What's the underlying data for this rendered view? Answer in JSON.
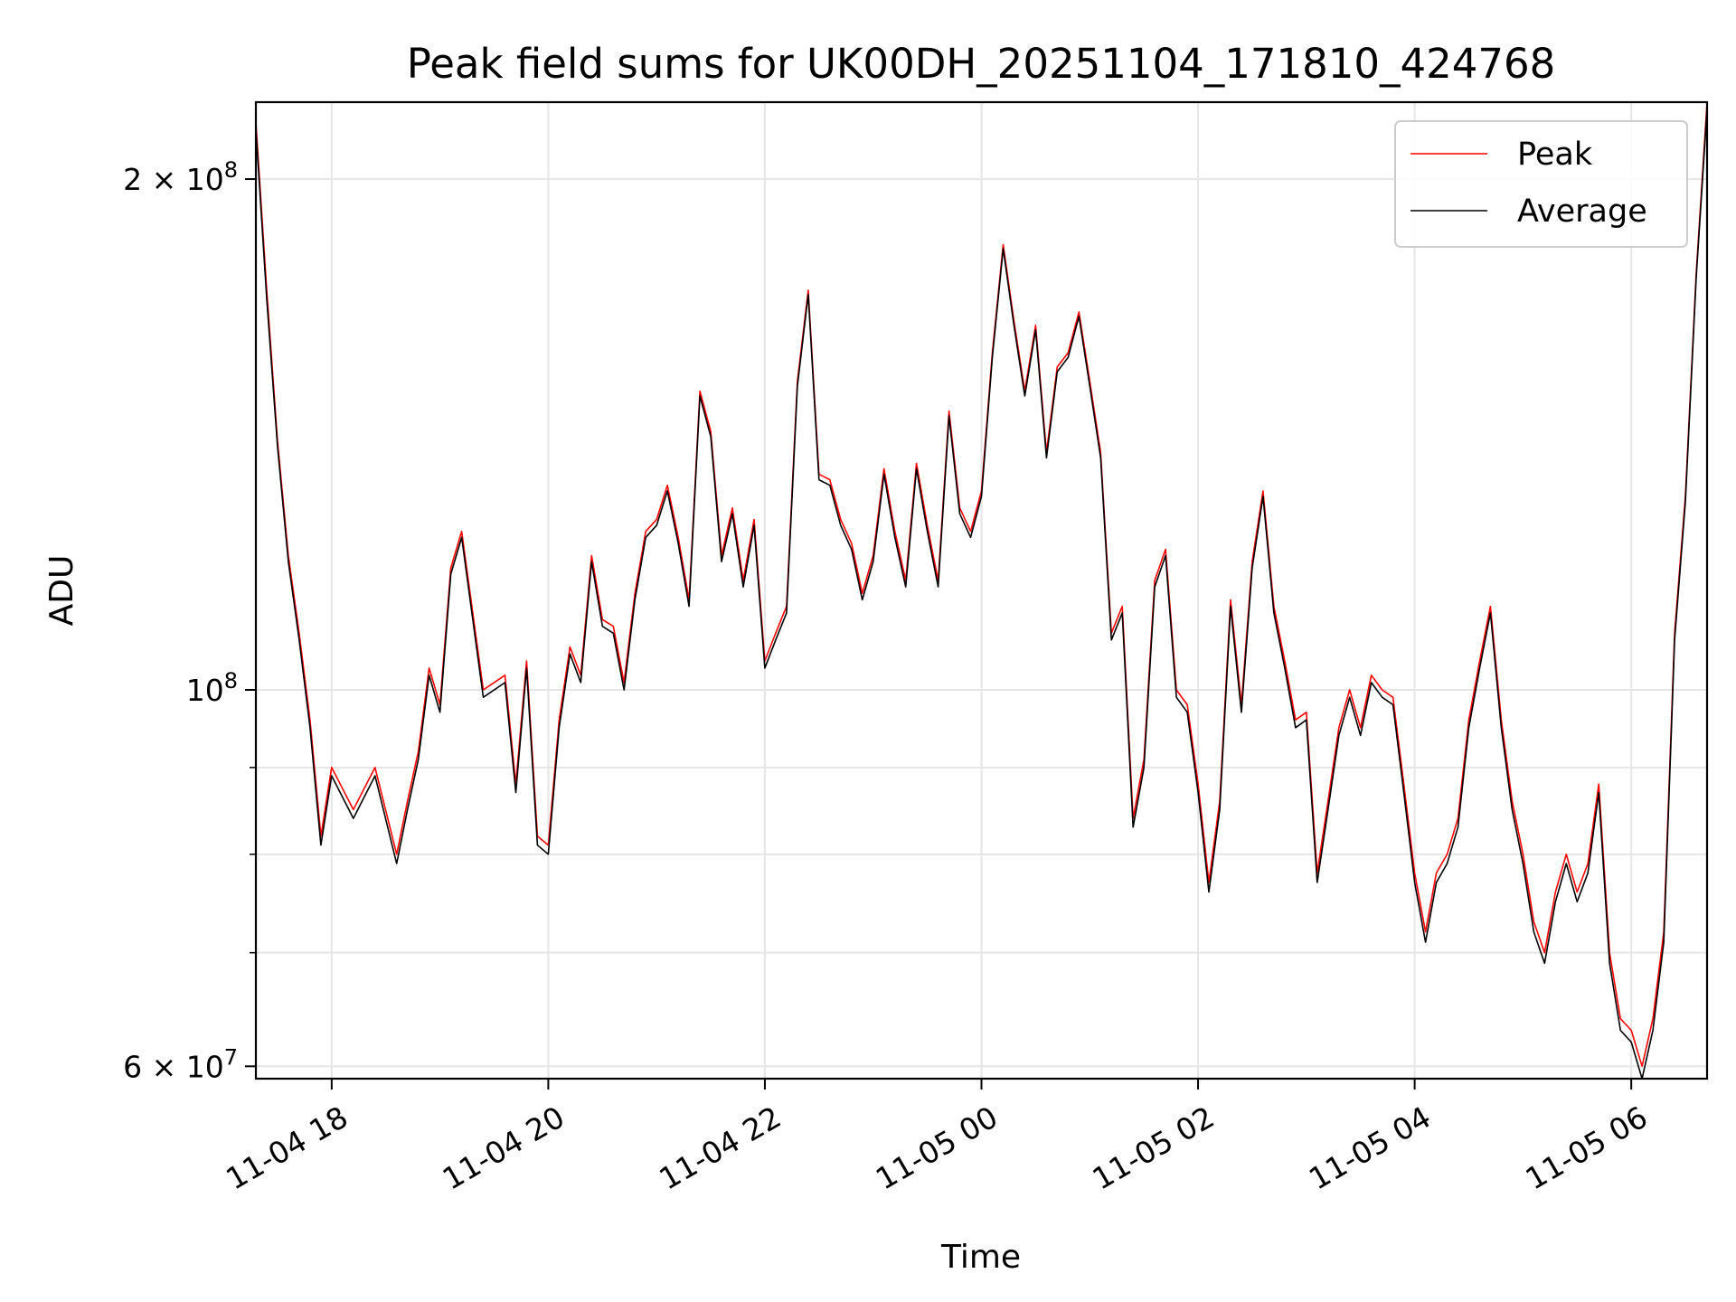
{
  "chart_data": {
    "type": "line",
    "title": "Peak field sums for UK00DH_20251104_171810_424768",
    "xlabel": "Time",
    "ylabel": "ADU",
    "yscale": "log",
    "ylim": [
      59000000,
      222000000
    ],
    "xlim": [
      "2025-11-04 17:18",
      "2025-11-05 06:42"
    ],
    "grid": true,
    "legend_position": "top-right",
    "x_ticks": [
      {
        "value": "2025-11-04 18:00",
        "label": "11-04 18"
      },
      {
        "value": "2025-11-04 20:00",
        "label": "11-04 20"
      },
      {
        "value": "2025-11-04 22:00",
        "label": "11-04 22"
      },
      {
        "value": "2025-11-05 00:00",
        "label": "11-05 00"
      },
      {
        "value": "2025-11-05 02:00",
        "label": "11-05 02"
      },
      {
        "value": "2025-11-05 04:00",
        "label": "11-05 04"
      },
      {
        "value": "2025-11-05 06:00",
        "label": "11-05 06"
      }
    ],
    "y_ticks_major": [
      {
        "value": 60000000,
        "label_base": "6 × 10",
        "label_exp": "7"
      },
      {
        "value": 100000000,
        "label_base": "10",
        "label_exp": "8"
      },
      {
        "value": 200000000,
        "label_base": "2 × 10",
        "label_exp": "8"
      }
    ],
    "y_ticks_minor": [
      70000000,
      80000000,
      90000000
    ],
    "x": [
      "2025-11-04 17:18",
      "2025-11-04 17:24",
      "2025-11-04 17:30",
      "2025-11-04 17:36",
      "2025-11-04 17:42",
      "2025-11-04 17:48",
      "2025-11-04 17:54",
      "2025-11-04 18:00",
      "2025-11-04 18:12",
      "2025-11-04 18:24",
      "2025-11-04 18:36",
      "2025-11-04 18:42",
      "2025-11-04 18:48",
      "2025-11-04 18:54",
      "2025-11-04 19:00",
      "2025-11-04 19:06",
      "2025-11-04 19:12",
      "2025-11-04 19:24",
      "2025-11-04 19:36",
      "2025-11-04 19:42",
      "2025-11-04 19:48",
      "2025-11-04 19:54",
      "2025-11-04 20:00",
      "2025-11-04 20:06",
      "2025-11-04 20:12",
      "2025-11-04 20:18",
      "2025-11-04 20:24",
      "2025-11-04 20:30",
      "2025-11-04 20:36",
      "2025-11-04 20:42",
      "2025-11-04 20:48",
      "2025-11-04 20:54",
      "2025-11-04 21:00",
      "2025-11-04 21:06",
      "2025-11-04 21:12",
      "2025-11-04 21:18",
      "2025-11-04 21:24",
      "2025-11-04 21:30",
      "2025-11-04 21:36",
      "2025-11-04 21:42",
      "2025-11-04 21:48",
      "2025-11-04 21:54",
      "2025-11-04 22:00",
      "2025-11-04 22:06",
      "2025-11-04 22:12",
      "2025-11-04 22:18",
      "2025-11-04 22:24",
      "2025-11-04 22:30",
      "2025-11-04 22:36",
      "2025-11-04 22:42",
      "2025-11-04 22:48",
      "2025-11-04 22:54",
      "2025-11-04 23:00",
      "2025-11-04 23:06",
      "2025-11-04 23:12",
      "2025-11-04 23:18",
      "2025-11-04 23:24",
      "2025-11-04 23:30",
      "2025-11-04 23:36",
      "2025-11-04 23:42",
      "2025-11-04 23:48",
      "2025-11-04 23:54",
      "2025-11-05 00:00",
      "2025-11-05 00:06",
      "2025-11-05 00:12",
      "2025-11-05 00:18",
      "2025-11-05 00:24",
      "2025-11-05 00:30",
      "2025-11-05 00:36",
      "2025-11-05 00:42",
      "2025-11-05 00:48",
      "2025-11-05 00:54",
      "2025-11-05 01:00",
      "2025-11-05 01:06",
      "2025-11-05 01:12",
      "2025-11-05 01:18",
      "2025-11-05 01:24",
      "2025-11-05 01:30",
      "2025-11-05 01:36",
      "2025-11-05 01:42",
      "2025-11-05 01:48",
      "2025-11-05 01:54",
      "2025-11-05 02:00",
      "2025-11-05 02:06",
      "2025-11-05 02:12",
      "2025-11-05 02:18",
      "2025-11-05 02:24",
      "2025-11-05 02:30",
      "2025-11-05 02:36",
      "2025-11-05 02:42",
      "2025-11-05 02:48",
      "2025-11-05 02:54",
      "2025-11-05 03:00",
      "2025-11-05 03:06",
      "2025-11-05 03:12",
      "2025-11-05 03:18",
      "2025-11-05 03:24",
      "2025-11-05 03:30",
      "2025-11-05 03:36",
      "2025-11-05 03:42",
      "2025-11-05 03:48",
      "2025-11-05 03:54",
      "2025-11-05 04:00",
      "2025-11-05 04:06",
      "2025-11-05 04:12",
      "2025-11-05 04:18",
      "2025-11-05 04:24",
      "2025-11-05 04:30",
      "2025-11-05 04:36",
      "2025-11-05 04:42",
      "2025-11-05 04:48",
      "2025-11-05 04:54",
      "2025-11-05 05:00",
      "2025-11-05 05:06",
      "2025-11-05 05:12",
      "2025-11-05 05:18",
      "2025-11-05 05:24",
      "2025-11-05 05:30",
      "2025-11-05 05:36",
      "2025-11-05 05:42",
      "2025-11-05 05:48",
      "2025-11-05 05:54",
      "2025-11-05 06:00",
      "2025-11-05 06:06",
      "2025-11-05 06:12",
      "2025-11-05 06:18",
      "2025-11-05 06:24",
      "2025-11-05 06:30",
      "2025-11-05 06:36",
      "2025-11-05 06:42"
    ],
    "series": [
      {
        "name": "Peak",
        "color": "#ff0000",
        "values": [
          216000000,
          172000000,
          140000000,
          120000000,
          108000000,
          96000000,
          82000000,
          90000000,
          85000000,
          90000000,
          80000000,
          86000000,
          92000000,
          103000000,
          98000000,
          118000000,
          124000000,
          100000000,
          102000000,
          88000000,
          104000000,
          82000000,
          81000000,
          96000000,
          106000000,
          102000000,
          120000000,
          110000000,
          109000000,
          101000000,
          114000000,
          124000000,
          126000000,
          132000000,
          123000000,
          113000000,
          150000000,
          142000000,
          120000000,
          128000000,
          116000000,
          126000000,
          104000000,
          108000000,
          112000000,
          152000000,
          172000000,
          134000000,
          133000000,
          126000000,
          122000000,
          114000000,
          120000000,
          135000000,
          124000000,
          116000000,
          136000000,
          125000000,
          116000000,
          146000000,
          128000000,
          124000000,
          131000000,
          158000000,
          183000000,
          165000000,
          150000000,
          164000000,
          138000000,
          155000000,
          158000000,
          167000000,
          152000000,
          138000000,
          108000000,
          112000000,
          84000000,
          91000000,
          116000000,
          121000000,
          100000000,
          98000000,
          88000000,
          77000000,
          86000000,
          113000000,
          98000000,
          119000000,
          131000000,
          112000000,
          104000000,
          96000000,
          97000000,
          78000000,
          86000000,
          95000000,
          100000000,
          95000000,
          102000000,
          100000000,
          99000000,
          88000000,
          78000000,
          72000000,
          78000000,
          80000000,
          84000000,
          96000000,
          104000000,
          112000000,
          96000000,
          86000000,
          80000000,
          73000000,
          70000000,
          76000000,
          80000000,
          76000000,
          79000000,
          88000000,
          70000000,
          64000000,
          63000000,
          60000000,
          64000000,
          72000000,
          108000000,
          130000000,
          176000000,
          222000000
        ]
      },
      {
        "name": "Average",
        "color": "#000000",
        "values": [
          214000000,
          170000000,
          139000000,
          119000000,
          107000000,
          95000000,
          81000000,
          89000000,
          84000000,
          89000000,
          79000000,
          85000000,
          91000000,
          102000000,
          97000000,
          117000000,
          123000000,
          99000000,
          101000000,
          87000000,
          103000000,
          81000000,
          80000000,
          95000000,
          105000000,
          101000000,
          119000000,
          109000000,
          108000000,
          100000000,
          113000000,
          123000000,
          125000000,
          131000000,
          122000000,
          112000000,
          149000000,
          141000000,
          119000000,
          127000000,
          115000000,
          125000000,
          103000000,
          107000000,
          111000000,
          151000000,
          171000000,
          133000000,
          132000000,
          125000000,
          121000000,
          113000000,
          119000000,
          134000000,
          123000000,
          115000000,
          135000000,
          124000000,
          115000000,
          145000000,
          127000000,
          123000000,
          130000000,
          157000000,
          182000000,
          164000000,
          149000000,
          163000000,
          137000000,
          154000000,
          157000000,
          166000000,
          151000000,
          137000000,
          107000000,
          111000000,
          83000000,
          90000000,
          115000000,
          120000000,
          99000000,
          97000000,
          87000000,
          76000000,
          85000000,
          112000000,
          97000000,
          118000000,
          130000000,
          111000000,
          103000000,
          95000000,
          96000000,
          77000000,
          85000000,
          94000000,
          99000000,
          94000000,
          101000000,
          99000000,
          98000000,
          87000000,
          77000000,
          71000000,
          77000000,
          79000000,
          83000000,
          95000000,
          103000000,
          111000000,
          95000000,
          85000000,
          79000000,
          72000000,
          69000000,
          75000000,
          79000000,
          75000000,
          78000000,
          87000000,
          69000000,
          63000000,
          62000000,
          59000000,
          63000000,
          71000000,
          107000000,
          129000000,
          175000000,
          220000000
        ]
      }
    ]
  }
}
